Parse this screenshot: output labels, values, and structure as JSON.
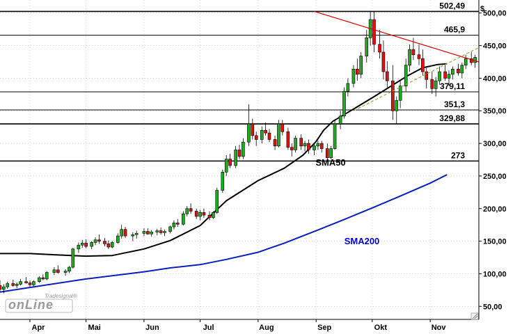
{
  "chart_data": {
    "type": "candlestick",
    "currency_label": "$",
    "ylim": [
      30,
      520
    ],
    "yticks": [
      50,
      100,
      150,
      200,
      250,
      300,
      350,
      400,
      450,
      500
    ],
    "ytick_labels": [
      "50,00",
      "100,00",
      "150,00",
      "200,00",
      "250,00",
      "300,00",
      "350,00",
      "400,00",
      "450,00",
      "500,00"
    ],
    "x_labels": [
      "Apr",
      "Mai",
      "Jun",
      "Jul",
      "Aug",
      "Sep",
      "Okt",
      "Nov"
    ],
    "x_label_dates": [
      "2020-04-01",
      "2020-05-01",
      "2020-06-01",
      "2020-07-01",
      "2020-08-01",
      "2020-09-01",
      "2020-10-01",
      "2020-11-01"
    ],
    "x_range": [
      "2020-03-16",
      "2020-11-27"
    ],
    "horizontal_levels": [
      {
        "value": 502.49,
        "label": "502,49"
      },
      {
        "value": 465.9,
        "label": "465,9"
      },
      {
        "value": 379.11,
        "label": "379,11"
      },
      {
        "value": 351.3,
        "label": "351,3"
      },
      {
        "value": 329.88,
        "label": "329,88"
      },
      {
        "value": 273,
        "label": "273"
      }
    ],
    "annotations": [
      {
        "text": "SMA50",
        "color": "#000000"
      },
      {
        "text": "SMA200",
        "color": "#0000cc"
      }
    ],
    "trendlines": [
      {
        "name": "resistance",
        "color": "#dd0000",
        "from": {
          "date": "2020-08-31",
          "value": 502.49
        },
        "to": {
          "date": "2020-11-27",
          "value": 425
        }
      },
      {
        "name": "support",
        "color": "#99aa33",
        "dashed": true,
        "from": {
          "date": "2020-09-21",
          "value": 350
        },
        "to": {
          "date": "2020-11-27",
          "value": 447
        }
      }
    ],
    "sma50": [
      [
        "2020-03-16",
        131
      ],
      [
        "2020-04-01",
        131
      ],
      [
        "2020-04-15",
        129
      ],
      [
        "2020-05-01",
        127
      ],
      [
        "2020-05-15",
        128
      ],
      [
        "2020-06-01",
        138
      ],
      [
        "2020-06-15",
        151
      ],
      [
        "2020-07-01",
        174
      ],
      [
        "2020-07-15",
        212
      ],
      [
        "2020-08-01",
        243
      ],
      [
        "2020-08-15",
        262
      ],
      [
        "2020-08-25",
        282
      ],
      [
        "2020-09-01",
        303
      ],
      [
        "2020-09-05",
        320
      ],
      [
        "2020-09-10",
        334
      ],
      [
        "2020-09-20",
        351
      ],
      [
        "2020-10-01",
        370
      ],
      [
        "2020-10-10",
        386
      ],
      [
        "2020-10-20",
        404
      ],
      [
        "2020-10-28",
        416
      ],
      [
        "2020-11-05",
        421
      ],
      [
        "2020-11-10",
        422
      ]
    ],
    "sma200": [
      [
        "2020-03-16",
        72
      ],
      [
        "2020-04-01",
        79
      ],
      [
        "2020-05-01",
        92
      ],
      [
        "2020-06-01",
        103
      ],
      [
        "2020-06-15",
        109
      ],
      [
        "2020-07-01",
        114
      ],
      [
        "2020-07-15",
        122
      ],
      [
        "2020-08-01",
        133
      ],
      [
        "2020-08-15",
        147
      ],
      [
        "2020-09-01",
        166
      ],
      [
        "2020-09-15",
        182
      ],
      [
        "2020-10-01",
        201
      ],
      [
        "2020-10-15",
        218
      ],
      [
        "2020-11-01",
        239
      ],
      [
        "2020-11-10",
        252
      ]
    ],
    "ohlc": [
      [
        "2020-03-16",
        82,
        90,
        72,
        76
      ],
      [
        "2020-03-18",
        76,
        84,
        70,
        80
      ],
      [
        "2020-03-20",
        80,
        88,
        77,
        85
      ],
      [
        "2020-03-23",
        85,
        91,
        80,
        82
      ],
      [
        "2020-03-25",
        82,
        87,
        78,
        84
      ],
      [
        "2020-03-27",
        84,
        92,
        82,
        88
      ],
      [
        "2020-03-30",
        88,
        95,
        85,
        86
      ],
      [
        "2020-04-01",
        86,
        90,
        80,
        83
      ],
      [
        "2020-04-03",
        83,
        90,
        81,
        88
      ],
      [
        "2020-04-06",
        88,
        96,
        86,
        94
      ],
      [
        "2020-04-08",
        94,
        99,
        90,
        92
      ],
      [
        "2020-04-10",
        92,
        104,
        90,
        102
      ],
      [
        "2020-04-14",
        102,
        110,
        98,
        106
      ],
      [
        "2020-04-16",
        106,
        113,
        100,
        102
      ],
      [
        "2020-04-20",
        102,
        107,
        97,
        104
      ],
      [
        "2020-04-22",
        104,
        112,
        101,
        110
      ],
      [
        "2020-04-24",
        110,
        140,
        108,
        138
      ],
      [
        "2020-04-27",
        138,
        148,
        132,
        144
      ],
      [
        "2020-04-29",
        144,
        152,
        140,
        147
      ],
      [
        "2020-05-01",
        147,
        153,
        139,
        142
      ],
      [
        "2020-05-04",
        142,
        150,
        138,
        148
      ],
      [
        "2020-05-06",
        148,
        156,
        144,
        152
      ],
      [
        "2020-05-08",
        152,
        160,
        146,
        150
      ],
      [
        "2020-05-11",
        150,
        155,
        142,
        146
      ],
      [
        "2020-05-13",
        146,
        151,
        138,
        141
      ],
      [
        "2020-05-15",
        141,
        150,
        139,
        148
      ],
      [
        "2020-05-18",
        148,
        162,
        146,
        158
      ],
      [
        "2020-05-20",
        158,
        175,
        154,
        168
      ],
      [
        "2020-05-22",
        168,
        172,
        155,
        158
      ],
      [
        "2020-05-26",
        158,
        164,
        150,
        160
      ],
      [
        "2020-05-28",
        160,
        166,
        154,
        162
      ],
      [
        "2020-06-01",
        162,
        170,
        158,
        165
      ],
      [
        "2020-06-03",
        165,
        170,
        160,
        161
      ],
      [
        "2020-06-05",
        161,
        167,
        157,
        164
      ],
      [
        "2020-06-08",
        164,
        169,
        159,
        166
      ],
      [
        "2020-06-10",
        166,
        171,
        160,
        163
      ],
      [
        "2020-06-12",
        163,
        168,
        158,
        165
      ],
      [
        "2020-06-15",
        165,
        174,
        162,
        172
      ],
      [
        "2020-06-17",
        172,
        182,
        168,
        178
      ],
      [
        "2020-06-19",
        178,
        184,
        172,
        176
      ],
      [
        "2020-06-22",
        176,
        196,
        174,
        192
      ],
      [
        "2020-06-24",
        192,
        204,
        188,
        200
      ],
      [
        "2020-06-26",
        200,
        208,
        192,
        196
      ],
      [
        "2020-06-29",
        196,
        200,
        184,
        188
      ],
      [
        "2020-07-01",
        188,
        198,
        182,
        194
      ],
      [
        "2020-07-03",
        194,
        200,
        186,
        190
      ],
      [
        "2020-07-06",
        190,
        196,
        182,
        186
      ],
      [
        "2020-07-08",
        186,
        196,
        184,
        194
      ],
      [
        "2020-07-10",
        194,
        232,
        192,
        228
      ],
      [
        "2020-07-13",
        228,
        260,
        224,
        256
      ],
      [
        "2020-07-15",
        256,
        282,
        250,
        276
      ],
      [
        "2020-07-17",
        276,
        284,
        262,
        266
      ],
      [
        "2020-07-20",
        266,
        296,
        262,
        290
      ],
      [
        "2020-07-22",
        290,
        298,
        276,
        280
      ],
      [
        "2020-07-24",
        280,
        308,
        276,
        302
      ],
      [
        "2020-07-27",
        302,
        360,
        296,
        330
      ],
      [
        "2020-07-29",
        330,
        338,
        306,
        312
      ],
      [
        "2020-07-31",
        312,
        318,
        296,
        306
      ],
      [
        "2020-08-03",
        306,
        326,
        300,
        320
      ],
      [
        "2020-08-05",
        320,
        332,
        312,
        316
      ],
      [
        "2020-08-07",
        316,
        322,
        302,
        306
      ],
      [
        "2020-08-10",
        306,
        312,
        290,
        296
      ],
      [
        "2020-08-12",
        296,
        336,
        294,
        330
      ],
      [
        "2020-08-14",
        330,
        336,
        312,
        318
      ],
      [
        "2020-08-17",
        318,
        324,
        290,
        294
      ],
      [
        "2020-08-19",
        294,
        300,
        280,
        290
      ],
      [
        "2020-08-21",
        290,
        312,
        286,
        308
      ],
      [
        "2020-08-24",
        308,
        314,
        290,
        296
      ],
      [
        "2020-08-26",
        296,
        304,
        288,
        300
      ],
      [
        "2020-08-28",
        300,
        306,
        284,
        290
      ],
      [
        "2020-08-31",
        290,
        300,
        282,
        296
      ],
      [
        "2020-09-02",
        296,
        304,
        290,
        300
      ],
      [
        "2020-09-04",
        300,
        304,
        286,
        292
      ],
      [
        "2020-09-07",
        292,
        300,
        272,
        278
      ],
      [
        "2020-09-09",
        278,
        296,
        276,
        292
      ],
      [
        "2020-09-11",
        292,
        336,
        290,
        330
      ],
      [
        "2020-09-14",
        330,
        350,
        322,
        342
      ],
      [
        "2020-09-16",
        342,
        386,
        338,
        380
      ],
      [
        "2020-09-18",
        380,
        400,
        372,
        392
      ],
      [
        "2020-09-21",
        392,
        420,
        386,
        414
      ],
      [
        "2020-09-23",
        414,
        430,
        396,
        406
      ],
      [
        "2020-09-25",
        406,
        440,
        400,
        434
      ],
      [
        "2020-09-28",
        434,
        474,
        424,
        462
      ],
      [
        "2020-09-30",
        462,
        503,
        450,
        490
      ],
      [
        "2020-10-02",
        490,
        503,
        440,
        452
      ],
      [
        "2020-10-05",
        452,
        474,
        430,
        440
      ],
      [
        "2020-10-07",
        440,
        458,
        398,
        410
      ],
      [
        "2020-10-09",
        410,
        426,
        386,
        396
      ],
      [
        "2020-10-12",
        396,
        420,
        336,
        350
      ],
      [
        "2020-10-14",
        350,
        372,
        330,
        366
      ],
      [
        "2020-10-16",
        366,
        396,
        354,
        388
      ],
      [
        "2020-10-19",
        388,
        430,
        380,
        420
      ],
      [
        "2020-10-21",
        420,
        452,
        410,
        444
      ],
      [
        "2020-10-23",
        444,
        462,
        428,
        436
      ],
      [
        "2020-10-26",
        436,
        452,
        420,
        430
      ],
      [
        "2020-10-28",
        430,
        444,
        404,
        410
      ],
      [
        "2020-10-30",
        410,
        416,
        384,
        398
      ],
      [
        "2020-11-02",
        398,
        410,
        376,
        384
      ],
      [
        "2020-11-04",
        384,
        402,
        372,
        396
      ],
      [
        "2020-11-06",
        396,
        418,
        390,
        410
      ],
      [
        "2020-11-09",
        410,
        422,
        396,
        400
      ],
      [
        "2020-11-11",
        400,
        412,
        388,
        406
      ],
      [
        "2020-11-13",
        406,
        418,
        398,
        414
      ],
      [
        "2020-11-16",
        414,
        422,
        404,
        408
      ],
      [
        "2020-11-18",
        408,
        424,
        400,
        420
      ],
      [
        "2020-11-20",
        420,
        436,
        414,
        430
      ],
      [
        "2020-11-23",
        430,
        440,
        420,
        424
      ],
      [
        "2020-11-25",
        424,
        436,
        416,
        432
      ]
    ]
  },
  "watermark": {
    "brand": "onLine",
    "vendor": "Tradesignal®"
  }
}
